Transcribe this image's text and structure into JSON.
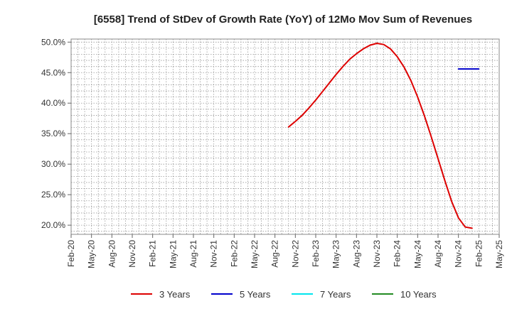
{
  "chart_data": {
    "type": "line",
    "title": "[6558]  Trend of StDev of Growth Rate (YoY) of 12Mo Mov Sum of Revenues",
    "xlabel": "",
    "ylabel": "",
    "x_ticks": [
      "Feb-20",
      "May-20",
      "Aug-20",
      "Nov-20",
      "Feb-21",
      "May-21",
      "Aug-21",
      "Nov-21",
      "Feb-22",
      "May-22",
      "Aug-22",
      "Nov-22",
      "Feb-23",
      "May-23",
      "Aug-23",
      "Nov-23",
      "Feb-24",
      "May-24",
      "Aug-24",
      "Nov-24",
      "Feb-25",
      "May-25"
    ],
    "y_ticks": [
      "20.0%",
      "25.0%",
      "30.0%",
      "35.0%",
      "40.0%",
      "45.0%",
      "50.0%"
    ],
    "y_tick_values": [
      20,
      25,
      30,
      35,
      40,
      45,
      50
    ],
    "ylim": [
      18.5,
      50.5
    ],
    "x_range_months": [
      0,
      63
    ],
    "grid": true,
    "legend_position": "bottom",
    "series": [
      {
        "name": "3 Years",
        "color": "#dd0000",
        "points": [
          {
            "x": "Oct-22",
            "y": 36.1
          },
          {
            "x": "Nov-22",
            "y": 37.0
          },
          {
            "x": "Dec-22",
            "y": 38.0
          },
          {
            "x": "Jan-23",
            "y": 39.2
          },
          {
            "x": "Feb-23",
            "y": 40.5
          },
          {
            "x": "Mar-23",
            "y": 41.9
          },
          {
            "x": "Apr-23",
            "y": 43.3
          },
          {
            "x": "May-23",
            "y": 44.7
          },
          {
            "x": "Jun-23",
            "y": 46.0
          },
          {
            "x": "Jul-23",
            "y": 47.2
          },
          {
            "x": "Aug-23",
            "y": 48.1
          },
          {
            "x": "Sep-23",
            "y": 48.9
          },
          {
            "x": "Oct-23",
            "y": 49.5
          },
          {
            "x": "Nov-23",
            "y": 49.8
          },
          {
            "x": "Dec-23",
            "y": 49.6
          },
          {
            "x": "Jan-24",
            "y": 48.9
          },
          {
            "x": "Feb-24",
            "y": 47.6
          },
          {
            "x": "Mar-24",
            "y": 45.9
          },
          {
            "x": "Apr-24",
            "y": 43.7
          },
          {
            "x": "May-24",
            "y": 41.0
          },
          {
            "x": "Jun-24",
            "y": 37.9
          },
          {
            "x": "Jul-24",
            "y": 34.5
          },
          {
            "x": "Aug-24",
            "y": 30.9
          },
          {
            "x": "Sep-24",
            "y": 27.3
          },
          {
            "x": "Oct-24",
            "y": 23.9
          },
          {
            "x": "Nov-24",
            "y": 21.2
          },
          {
            "x": "Dec-24",
            "y": 19.7
          },
          {
            "x": "Jan-25",
            "y": 19.5
          }
        ]
      },
      {
        "name": "5 Years",
        "color": "#0000cc",
        "points": [
          {
            "x": "Nov-24",
            "y": 45.6
          },
          {
            "x": "Dec-24",
            "y": 45.6
          },
          {
            "x": "Jan-25",
            "y": 45.6
          },
          {
            "x": "Feb-25",
            "y": 45.6
          }
        ]
      },
      {
        "name": "7 Years",
        "color": "#00e5ee",
        "points": []
      },
      {
        "name": "10 Years",
        "color": "#228b22",
        "points": []
      }
    ]
  }
}
